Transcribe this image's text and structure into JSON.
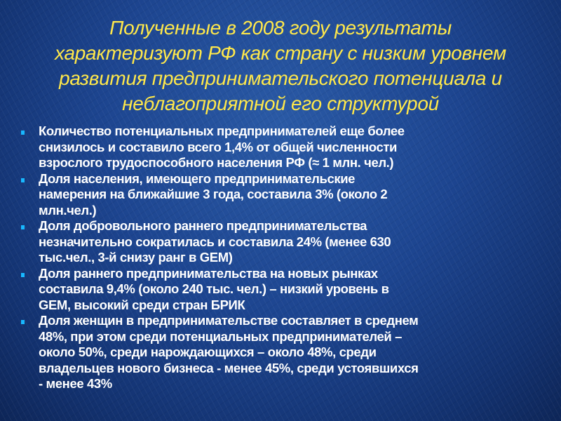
{
  "title_lines": [
    "Полученные в 2008 году результаты",
    "характеризуют РФ как страну с низким уровнем",
    "развития предпринимательского потенциала и",
    "неблагоприятной его структурой"
  ],
  "bullets": [
    {
      "lines": [
        "Количество потенциальных предпринимателей еще более",
        "снизилось и составило всего 1,4% от общей численности",
        "взрослого трудоспособного населения РФ (≈ 1 млн. чел.)"
      ]
    },
    {
      "lines": [
        "Доля населения, имеющего предпринимательские",
        "намерения на ближайшие 3 года, составила 3% (около 2",
        "млн.чел.)"
      ]
    },
    {
      "lines": [
        "Доля добровольного раннего предпринимательства",
        "незначительно сократилась и составила 24% (менее 630",
        "тыс.чел., 3-й снизу ранг в GEM)"
      ]
    },
    {
      "lines": [
        "Доля раннего предпринимательства на новых рынках",
        "составила 9,4% (около 240 тыс. чел.) – низкий уровень в",
        "GEM, высокий среди стран БРИК"
      ]
    },
    {
      "lines": [
        "Доля женщин в предпринимательстве составляет в среднем",
        "48%, при этом среди потенциальных предпринимателей –",
        "около 50%, среди нарождающихся – около 48%, среди",
        "владельцев нового бизнеса -  менее 45%, среди устоявшихся",
        "-  менее 43%"
      ]
    }
  ],
  "colors": {
    "title": "#ffe84a",
    "bullet": "#18b8ff",
    "background": "#1d4590"
  }
}
